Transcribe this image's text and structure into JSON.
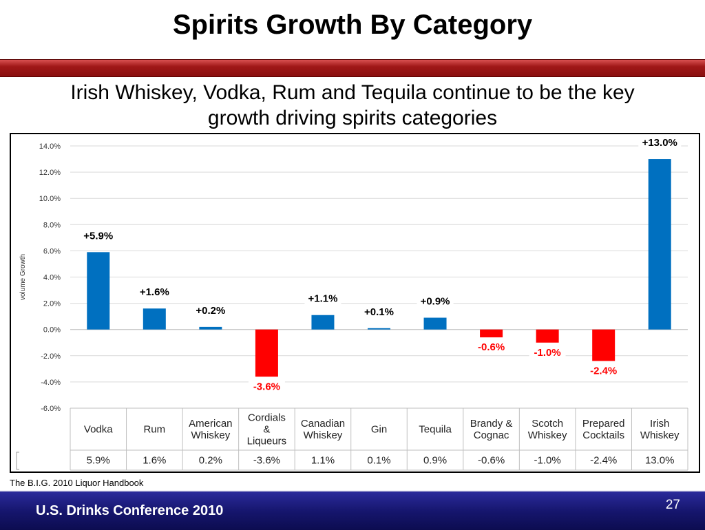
{
  "slide": {
    "title": "Spirits Growth By Category",
    "subtitle_line1": "Irish Whiskey, Vodka, Rum and Tequila continue to be the key",
    "subtitle_line2": "growth driving spirits categories",
    "source": "The B.I.G. 2010 Liquor Handbook",
    "footer": "U.S. Drinks Conference 2010",
    "page_number": "27"
  },
  "colors": {
    "positive_bar": "#0070c0",
    "negative_bar": "#ff0000",
    "negative_label": "#ff0000",
    "positive_label": "#000000"
  },
  "chart_data": {
    "type": "bar",
    "ylabel": "volume Growth",
    "ylim": [
      -6,
      14
    ],
    "y_ticks": [
      14,
      12,
      10,
      8,
      6,
      4,
      2,
      0,
      -2,
      -4,
      -6
    ],
    "y_tick_labels": [
      "14.0%",
      "12.0%",
      "10.0%",
      "8.0%",
      "6.0%",
      "4.0%",
      "2.0%",
      "0.0%",
      "-2.0%",
      "-4.0%",
      "-6.0%"
    ],
    "grid": true,
    "categories": [
      [
        "Vodka"
      ],
      [
        "Rum"
      ],
      [
        "American",
        "Whiskey"
      ],
      [
        "Cordials",
        "&",
        "Liqueurs"
      ],
      [
        "Canadian",
        "Whiskey"
      ],
      [
        "Gin"
      ],
      [
        "Tequila"
      ],
      [
        "Brandy &",
        "Cognac"
      ],
      [
        "Scotch",
        "Whiskey"
      ],
      [
        "Prepared",
        "Cocktails"
      ],
      [
        "Irish",
        "Whiskey"
      ]
    ],
    "values": [
      5.9,
      1.6,
      0.2,
      -3.6,
      1.1,
      0.1,
      0.9,
      -0.6,
      -1.0,
      -2.4,
      13.0
    ],
    "data_labels": [
      "+5.9%",
      "+1.6%",
      "+0.2%",
      "-3.6%",
      "+1.1%",
      "+0.1%",
      "+0.9%",
      "-0.6%",
      "-1.0%",
      "-2.4%",
      "+13.0%"
    ],
    "table_values": [
      "5.9%",
      "1.6%",
      "0.2%",
      "-3.6%",
      "1.1%",
      "0.1%",
      "0.9%",
      "-0.6%",
      "-1.0%",
      "-2.4%",
      "13.0%"
    ]
  }
}
